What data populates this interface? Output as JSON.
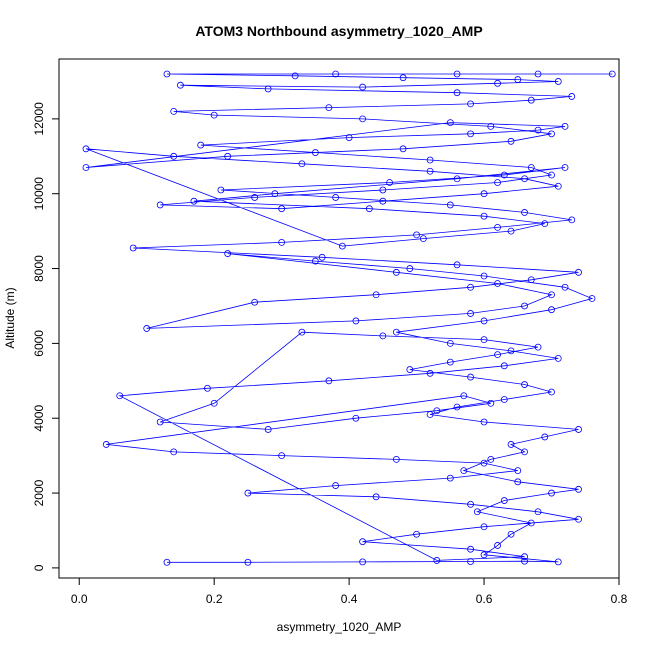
{
  "chart_data": {
    "type": "scatter",
    "title": "ATOM3 Northbound asymmetry_1020_AMP",
    "xlabel": "asymmetry_1020_AMP",
    "ylabel": "Altitude (m)",
    "xlim": [
      -0.03,
      0.8
    ],
    "ylim": [
      -270,
      13600
    ],
    "x_ticks": [
      0.0,
      0.2,
      0.4,
      0.6,
      0.8
    ],
    "x_tick_labels": [
      "0.0",
      "0.2",
      "0.4",
      "0.6",
      "0.8"
    ],
    "y_ticks": [
      0,
      2000,
      4000,
      6000,
      8000,
      10000,
      12000
    ],
    "y_tick_labels": [
      "0",
      "2000",
      "4000",
      "6000",
      "8000",
      "10000",
      "12000"
    ],
    "grid": false,
    "connect_points": true,
    "marker": "open-circle",
    "color": "#0000ff",
    "series": [
      {
        "x": [
          0.13,
          0.25,
          0.42,
          0.58,
          0.66,
          0.71,
          0.6,
          0.62,
          0.64,
          0.67,
          0.59,
          0.63,
          0.7,
          0.74,
          0.65,
          0.57,
          0.61,
          0.66,
          0.64,
          0.69,
          0.74,
          0.6,
          0.52,
          0.56,
          0.63,
          0.7,
          0.66,
          0.58,
          0.49,
          0.55,
          0.62,
          0.68,
          0.6,
          0.45,
          0.33,
          0.2,
          0.12,
          0.28,
          0.41,
          0.53,
          0.61,
          0.57,
          0.04,
          0.14,
          0.3,
          0.47,
          0.6,
          0.65,
          0.55,
          0.38,
          0.25,
          0.44,
          0.58,
          0.68,
          0.74,
          0.6,
          0.5,
          0.42,
          0.58,
          0.66,
          0.53,
          0.06,
          0.19,
          0.37,
          0.52,
          0.63,
          0.71,
          0.64,
          0.55,
          0.47,
          0.6,
          0.7,
          0.76,
          0.72,
          0.6,
          0.49,
          0.35,
          0.22,
          0.47,
          0.62,
          0.7,
          0.66,
          0.58,
          0.41,
          0.1,
          0.26,
          0.44,
          0.58,
          0.67,
          0.74,
          0.56,
          0.36,
          0.08,
          0.3,
          0.5,
          0.62,
          0.73,
          0.66,
          0.55,
          0.38,
          0.21,
          0.46,
          0.63,
          0.72,
          0.56,
          0.29,
          0.17,
          0.43,
          0.6,
          0.69,
          0.64,
          0.51,
          0.39,
          0.01,
          0.14,
          0.33,
          0.52,
          0.66,
          0.71,
          0.6,
          0.45,
          0.3,
          0.12,
          0.26,
          0.45,
          0.62,
          0.7,
          0.67,
          0.52,
          0.35,
          0.18,
          0.4,
          0.58,
          0.68,
          0.72,
          0.55,
          0.01,
          0.22,
          0.48,
          0.64,
          0.7,
          0.61,
          0.42,
          0.2,
          0.14,
          0.37,
          0.58,
          0.67,
          0.73,
          0.56,
          0.28,
          0.15,
          0.42,
          0.62,
          0.71,
          0.65,
          0.48,
          0.32,
          0.13,
          0.38,
          0.56,
          0.68,
          0.79
        ],
        "y": [
          150,
          150,
          160,
          170,
          180,
          160,
          350,
          600,
          900,
          1200,
          1500,
          1800,
          2000,
          2100,
          2300,
          2600,
          2900,
          3100,
          3300,
          3500,
          3700,
          3900,
          4100,
          4300,
          4500,
          4700,
          4900,
          5100,
          5300,
          5500,
          5700,
          5900,
          6100,
          6200,
          6300,
          4400,
          3900,
          3700,
          4000,
          4200,
          4400,
          4600,
          3300,
          3100,
          3000,
          2900,
          2800,
          2600,
          2400,
          2200,
          2000,
          1900,
          1700,
          1500,
          1300,
          1100,
          900,
          700,
          500,
          300,
          200,
          4600,
          4800,
          5000,
          5200,
          5400,
          5600,
          5800,
          6000,
          6300,
          6600,
          6900,
          7200,
          7500,
          7800,
          8000,
          8200,
          8400,
          7900,
          7600,
          7300,
          7000,
          6800,
          6600,
          6400,
          7100,
          7300,
          7500,
          7700,
          7900,
          8100,
          8300,
          8550,
          8700,
          8900,
          9100,
          9300,
          9500,
          9700,
          9900,
          10100,
          10300,
          10500,
          10700,
          10400,
          10000,
          9800,
          9600,
          9400,
          9200,
          9000,
          8800,
          8600,
          11200,
          11000,
          10800,
          10600,
          10400,
          10200,
          10000,
          9800,
          9600,
          9700,
          9900,
          10100,
          10300,
          10500,
          10700,
          10900,
          11100,
          11300,
          11500,
          11600,
          11700,
          11800,
          11900,
          10700,
          11000,
          11200,
          11400,
          11600,
          11800,
          12000,
          12100,
          12200,
          12300,
          12400,
          12500,
          12600,
          12700,
          12800,
          12900,
          12850,
          12950,
          13000,
          13050,
          13100,
          13150,
          13200,
          13200,
          13200,
          13200,
          13200
        ]
      }
    ]
  }
}
